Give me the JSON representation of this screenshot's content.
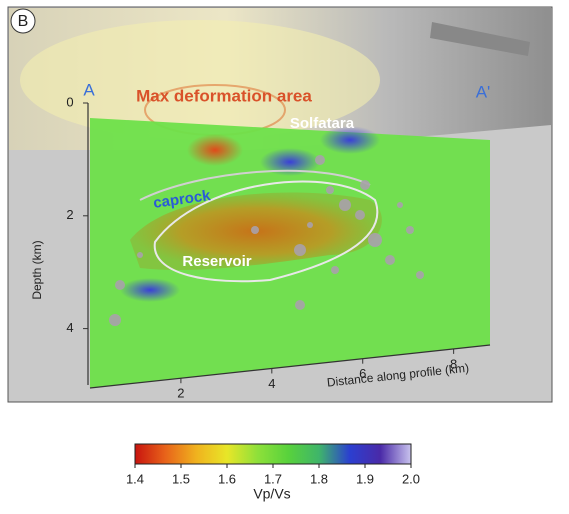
{
  "panel_label": "B",
  "profile": {
    "start": "A",
    "end": "A'"
  },
  "annotations": {
    "max_deformation": "Max deformation area",
    "solfatara": "Solfatara",
    "caprock": "caprock",
    "reservoir": "Reservoir"
  },
  "depth_axis": {
    "label": "Depth (km)",
    "lim": [
      0,
      5
    ],
    "ticks": [
      0,
      2,
      4
    ]
  },
  "distance_axis": {
    "label": "Distance along profile (km)",
    "lim": [
      0,
      8.8
    ],
    "ticks": [
      2,
      4,
      6,
      8
    ]
  },
  "colorbar": {
    "label": "Vp/Vs",
    "lim": [
      1.4,
      2.0
    ],
    "ticks": [
      1.4,
      1.5,
      1.6,
      1.7,
      1.8,
      1.9,
      {
        "value": 2.0,
        "label": "2.0"
      }
    ],
    "colors": [
      "#c8140f",
      "#e8641a",
      "#f0b21e",
      "#e8e628",
      "#8ee03a",
      "#58d23c",
      "#3fb56a",
      "#2b3fd0",
      "#4a2aa8",
      "#c9c3ee"
    ]
  }
}
